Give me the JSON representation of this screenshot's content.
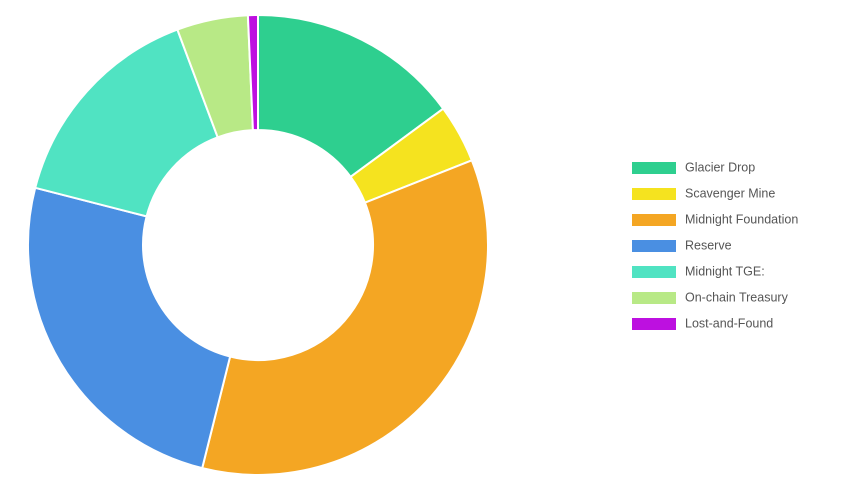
{
  "chart_data": {
    "type": "donut",
    "categories": [
      "Glacier Drop",
      "Scavenger Mine",
      "Midnight Foundation",
      "Reserve",
      "Midnight TGE:",
      "On-chain Treasury",
      "Lost-and-Found"
    ],
    "values": [
      14.9,
      4.1,
      34.9,
      25.1,
      15.3,
      5.0,
      0.7
    ],
    "colors": [
      "#2ecf8f",
      "#f5e31f",
      "#f4a623",
      "#4a8fe2",
      "#50e3c2",
      "#b8e986",
      "#bd10e0"
    ],
    "legend": "right"
  }
}
